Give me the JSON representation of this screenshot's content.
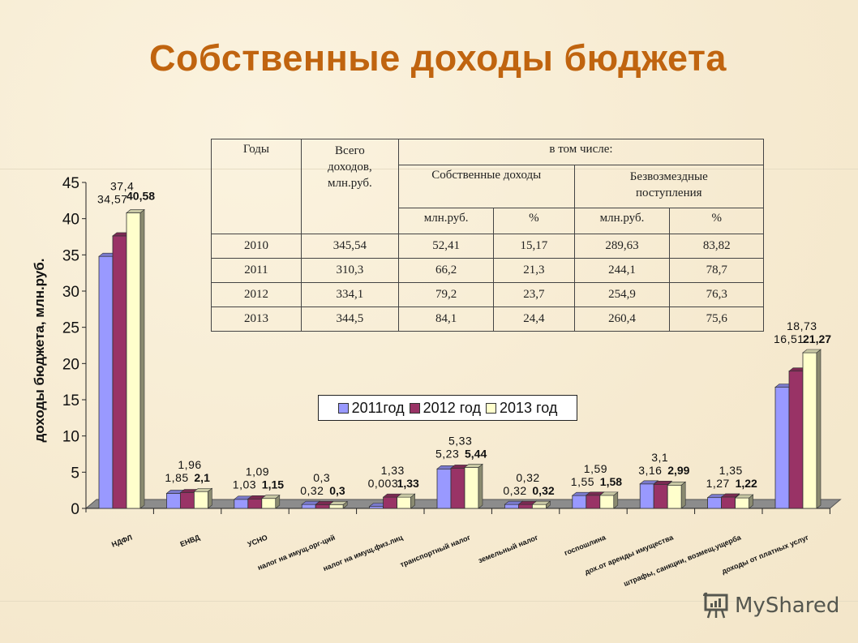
{
  "title": "Собственные доходы бюджета",
  "table": {
    "headers": {
      "years": "Годы",
      "total": "Всего доходов, млн.руб.",
      "including": "в том числе:",
      "own": "Собственные доходы",
      "grants": "Безвозмездные поступления",
      "unit_mln": "млн.руб.",
      "unit_pct": "%"
    },
    "rows": [
      {
        "year": "2010",
        "total": "345,54",
        "own_mln": "52,41",
        "own_pct": "15,17",
        "grants_mln": "289,63",
        "grants_pct": "83,82"
      },
      {
        "year": "2011",
        "total": "310,3",
        "own_mln": "66,2",
        "own_pct": "21,3",
        "grants_mln": "244,1",
        "grants_pct": "78,7"
      },
      {
        "year": "2012",
        "total": "334,1",
        "own_mln": "79,2",
        "own_pct": "23,7",
        "grants_mln": "254,9",
        "grants_pct": "76,3"
      },
      {
        "year": "2013",
        "total": "344,5",
        "own_mln": "84,1",
        "own_pct": "24,4",
        "grants_mln": "260,4",
        "grants_pct": "75,6"
      }
    ]
  },
  "chart_data": {
    "type": "bar",
    "title": "Собственные доходы бюджета",
    "xlabel": "",
    "ylabel": "доходы бюджета, млн.руб.",
    "ylim": [
      0,
      45
    ],
    "yticks": [
      "0",
      "5",
      "10",
      "15",
      "20",
      "25",
      "30",
      "35",
      "40",
      "45"
    ],
    "grid": false,
    "legend_position": "center",
    "categories": [
      "НДФЛ",
      "ЕНВД",
      "УСНО",
      "налог на имущ.орг-ций",
      "налог на имущ.физ.лиц",
      "транспортный налог",
      "земельный налог",
      "госпошлина",
      "дох.от аренды имущества",
      "штрафы, санкции, возмещ.ущерба",
      "доходы от платных услуг"
    ],
    "series": [
      {
        "name": "2011год",
        "color": "#9999ff",
        "values": [
          34.57,
          1.85,
          1.03,
          0.32,
          0.003,
          5.23,
          0.32,
          1.55,
          3.16,
          1.27,
          16.51
        ],
        "labels": [
          "34,57",
          "1,85",
          "1,03",
          "0,32",
          "0,003",
          "5,23",
          "0,32",
          "1,55",
          "3,16",
          "1,27",
          "16,51"
        ]
      },
      {
        "name": "2012 год",
        "color": "#993366",
        "values": [
          37.4,
          1.96,
          1.09,
          0.3,
          1.33,
          5.33,
          0.32,
          1.59,
          3.1,
          1.35,
          18.73
        ],
        "labels": [
          "37,4",
          "1,96",
          "1,09",
          "0,3",
          "1,33",
          "5,33",
          "0,32",
          "1,59",
          "3,1",
          "1,35",
          "18,73"
        ]
      },
      {
        "name": "2013 год",
        "color": "#ffffcc",
        "values": [
          40.58,
          2.1,
          1.15,
          0.3,
          1.33,
          5.44,
          0.32,
          1.58,
          2.99,
          1.22,
          21.27
        ],
        "labels": [
          "40,58",
          "2,1",
          "1,15",
          "0,3",
          "1,33",
          "5,44",
          "0,32",
          "1,58",
          "2,99",
          "1,22",
          "21,27"
        ]
      }
    ]
  },
  "watermark": {
    "text": "MyShared"
  }
}
